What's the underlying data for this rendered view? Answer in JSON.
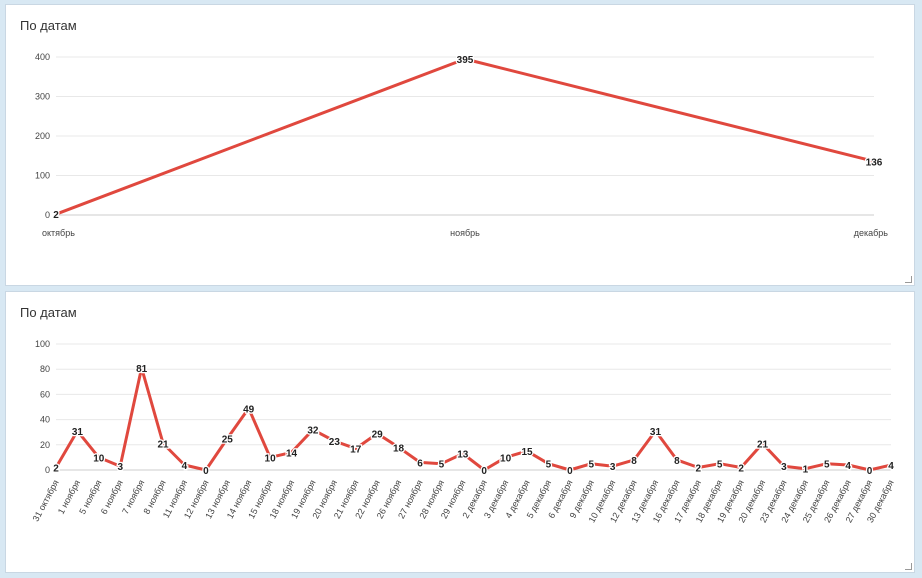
{
  "charts": [
    {
      "title": "По датам",
      "chart_data": {
        "type": "line",
        "categories": [
          "октябрь",
          "ноябрь",
          "декабрь"
        ],
        "values": [
          2,
          395,
          136
        ],
        "ylim": [
          0,
          400
        ],
        "yticks": [
          0,
          100,
          200,
          300,
          400
        ],
        "grid": true,
        "legend": "none",
        "color": "#e0483e"
      }
    },
    {
      "title": "По датам",
      "chart_data": {
        "type": "line",
        "categories": [
          "31 октября",
          "1 ноября",
          "5 ноября",
          "6 ноября",
          "7 ноября",
          "8 ноября",
          "11 ноября",
          "12 ноября",
          "13 ноября",
          "14 ноября",
          "15 ноября",
          "18 ноября",
          "19 ноября",
          "20 ноября",
          "21 ноября",
          "22 ноября",
          "26 ноября",
          "27 ноября",
          "28 ноября",
          "29 ноября",
          "2 декабря",
          "3 декабря",
          "4 декабря",
          "5 декабря",
          "6 декабря",
          "9 декабря",
          "10 декабря",
          "12 декабря",
          "13 декабря",
          "16 декабря",
          "17 декабря",
          "18 декабря",
          "19 декабря",
          "20 декабря",
          "23 декабря",
          "24 декабря",
          "25 декабря",
          "26 декабря",
          "27 декабря",
          "30 декабря"
        ],
        "values": [
          2,
          31,
          10,
          3,
          81,
          21,
          4,
          0,
          25,
          49,
          10,
          14,
          32,
          23,
          17,
          29,
          18,
          6,
          5,
          13,
          0,
          10,
          15,
          5,
          0,
          5,
          3,
          8,
          31,
          8,
          2,
          5,
          2,
          21,
          3,
          1,
          5,
          4,
          0,
          4
        ],
        "ylim": [
          0,
          100
        ],
        "yticks": [
          0,
          20,
          40,
          60,
          80,
          100
        ],
        "grid": true,
        "legend": "none",
        "color": "#e0483e"
      }
    }
  ]
}
